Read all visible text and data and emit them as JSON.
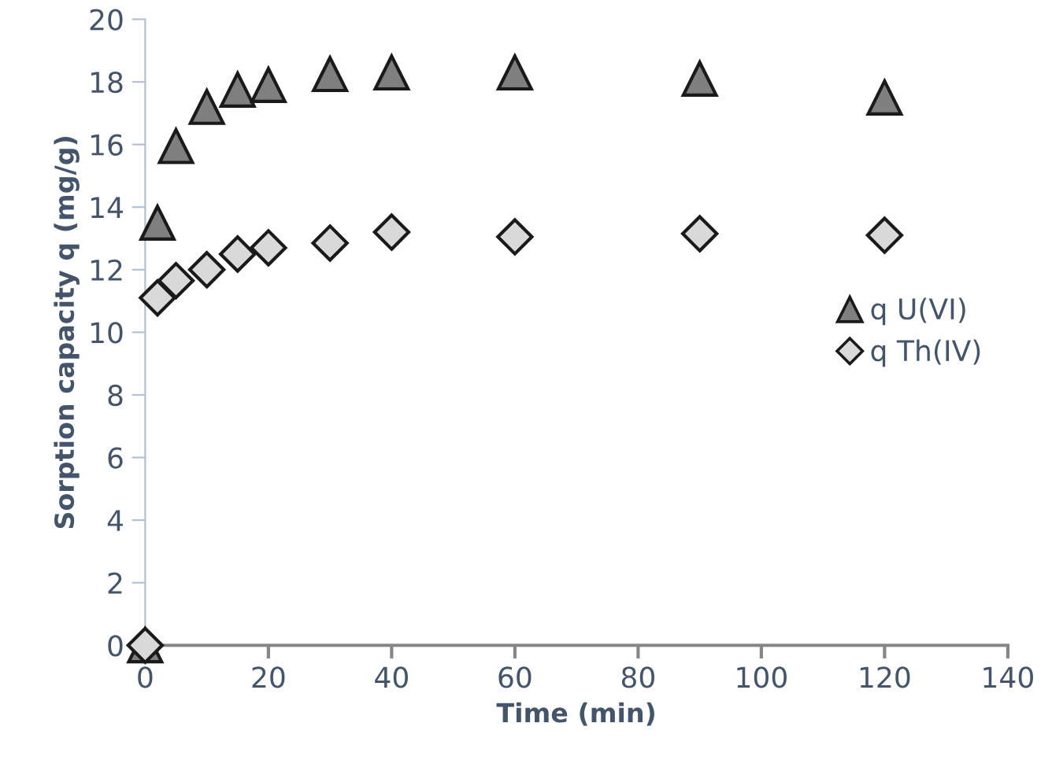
{
  "chart_data": {
    "type": "scatter",
    "xlabel": "Time (min)",
    "ylabel": "Sorption capacity q (mg/g)",
    "x": [
      0,
      2,
      5,
      10,
      15,
      20,
      30,
      40,
      60,
      90,
      120
    ],
    "series": [
      {
        "name": "q U(VI)",
        "color": "#7f7f7f",
        "marker": "triangle",
        "values": [
          0,
          13.5,
          15.95,
          17.2,
          17.75,
          17.9,
          18.25,
          18.3,
          18.3,
          18.1,
          17.5
        ]
      },
      {
        "name": "q Th(IV)",
        "color": "#d9d9d9",
        "marker": "diamond",
        "values": [
          0,
          11.1,
          11.65,
          12.0,
          12.5,
          12.7,
          12.85,
          13.2,
          13.05,
          13.15,
          13.1
        ]
      }
    ],
    "xlim": [
      0,
      140
    ],
    "xticks": [
      0,
      20,
      40,
      60,
      80,
      100,
      120,
      140
    ],
    "ylim": [
      0,
      20
    ],
    "yticks": [
      0,
      2,
      4,
      6,
      8,
      10,
      12,
      14,
      16,
      18,
      20
    ],
    "grid": false,
    "legend": "right"
  }
}
